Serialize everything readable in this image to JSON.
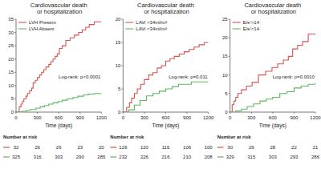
{
  "chart_data": [
    {
      "type": "step",
      "title": "Cardiovascular death or hospitalization",
      "xlabel": "Time (days)",
      "xlim": [
        0,
        1200
      ],
      "xticks": [
        0,
        300,
        600,
        900,
        1200
      ],
      "ylim": [
        0,
        35
      ],
      "yticks": [
        0,
        5,
        10,
        15,
        20,
        25,
        30,
        35
      ],
      "grid": false,
      "legend": "upper left",
      "annotations": [
        "Log-rank: p<0.0001"
      ],
      "at_risk_title": "Number at risk",
      "at_risk_x": [
        0,
        300,
        600,
        900,
        1200
      ],
      "series": [
        {
          "name": "LVH Present",
          "color": "#d9534f",
          "x": [
            0,
            45,
            70,
            90,
            110,
            140,
            160,
            190,
            220,
            240,
            270,
            300,
            330,
            360,
            390,
            420,
            460,
            490,
            520,
            550,
            580,
            610,
            650,
            700,
            760,
            820,
            880,
            930,
            980,
            1030,
            1100,
            1150,
            1200
          ],
          "values": [
            0,
            2,
            3,
            4,
            5,
            6,
            7,
            8,
            9,
            11,
            12,
            13,
            14,
            15,
            16,
            17,
            18,
            19,
            20,
            21,
            22,
            24,
            25,
            27,
            28,
            29,
            30,
            31,
            32,
            33,
            34,
            34,
            34
          ],
          "at_risk": [
            32,
            26,
            26,
            23,
            20
          ]
        },
        {
          "name": "LVH Absent",
          "color": "#5cb85c",
          "x": [
            0,
            80,
            150,
            200,
            280,
            340,
            400,
            460,
            520,
            590,
            650,
            720,
            800,
            870,
            950,
            1020,
            1100,
            1200
          ],
          "values": [
            0,
            0.3,
            0.7,
            1.0,
            1.5,
            2.0,
            2.5,
            3.0,
            3.5,
            4.0,
            4.5,
            5.0,
            5.5,
            6.0,
            6.5,
            6.8,
            7.0,
            7.0
          ],
          "at_risk": [
            325,
            316,
            303,
            290,
            285
          ]
        }
      ]
    },
    {
      "type": "step",
      "title": "Cardiovascular death or hospitalization",
      "xlabel": "Time (days)",
      "xlim": [
        0,
        1200
      ],
      "xticks": [
        0,
        300,
        600,
        900,
        1200
      ],
      "ylim": [
        0,
        20
      ],
      "yticks": [
        0,
        5,
        10,
        15,
        20
      ],
      "grid": false,
      "legend": "upper left",
      "annotations": [
        "Log-rank: p=0.011"
      ],
      "at_risk_title": "Number at risk",
      "at_risk_x": [
        0,
        300,
        600,
        900,
        1200
      ],
      "series": [
        {
          "name": "LAVi >34ml/m²",
          "color": "#d9534f",
          "x": [
            0,
            50,
            90,
            120,
            160,
            200,
            250,
            300,
            360,
            420,
            480,
            540,
            600,
            660,
            720,
            790,
            860,
            930,
            1000,
            1070,
            1140,
            1200
          ],
          "values": [
            0,
            1,
            2,
            3,
            4,
            5,
            6,
            7,
            8,
            8.5,
            9.5,
            10,
            11,
            11.5,
            12,
            12.5,
            13,
            13.5,
            14,
            14.5,
            15,
            15
          ],
          "at_risk": [
            129,
            120,
            116,
            106,
            100
          ]
        },
        {
          "name": "LAVi <34ml/m²",
          "color": "#5cb85c",
          "x": [
            0,
            80,
            160,
            240,
            330,
            420,
            510,
            600,
            690,
            780,
            870,
            960,
            1050,
            1200
          ],
          "values": [
            0,
            0.5,
            1.5,
            2.5,
            3.5,
            4.0,
            4.5,
            5.0,
            5.5,
            6.0,
            6.0,
            6.5,
            6.5,
            6.5
          ],
          "at_risk": [
            232,
            226,
            216,
            210,
            208
          ]
        }
      ]
    },
    {
      "type": "step",
      "title": "Cardiovascular death or hospitalization",
      "xlabel": "Time (days)",
      "xlim": [
        0,
        1200
      ],
      "xticks": [
        0,
        300,
        600,
        900,
        1200
      ],
      "ylim": [
        0,
        25
      ],
      "yticks": [
        0,
        5,
        10,
        15,
        20,
        25
      ],
      "grid": false,
      "legend": "upper left",
      "annotations": [
        "Log-rank: p=0.0010"
      ],
      "at_risk_title": "Number at risk",
      "at_risk_x": [
        0,
        300,
        600,
        900,
        1200
      ],
      "series": [
        {
          "name": "E/e'>14",
          "color": "#d9534f",
          "x": [
            0,
            30,
            55,
            80,
            110,
            160,
            230,
            310,
            400,
            500,
            590,
            670,
            750,
            820,
            880,
            950,
            1020,
            1100,
            1200
          ],
          "values": [
            0,
            2,
            3,
            4,
            5,
            6,
            7,
            8,
            10,
            11,
            12,
            13,
            14,
            15,
            17,
            18,
            19,
            21,
            21
          ],
          "at_risk": [
            30,
            29,
            28,
            22,
            21
          ]
        },
        {
          "name": "E/e'<14",
          "color": "#5cb85c",
          "x": [
            0,
            80,
            160,
            240,
            330,
            420,
            510,
            600,
            700,
            800,
            900,
            1000,
            1100,
            1200
          ],
          "values": [
            0,
            0.3,
            0.8,
            1.5,
            2.2,
            3.0,
            3.5,
            4.0,
            5.0,
            5.5,
            6.5,
            7.0,
            7.5,
            8.0
          ],
          "at_risk": [
            329,
            315,
            303,
            293,
            286
          ]
        }
      ]
    }
  ]
}
